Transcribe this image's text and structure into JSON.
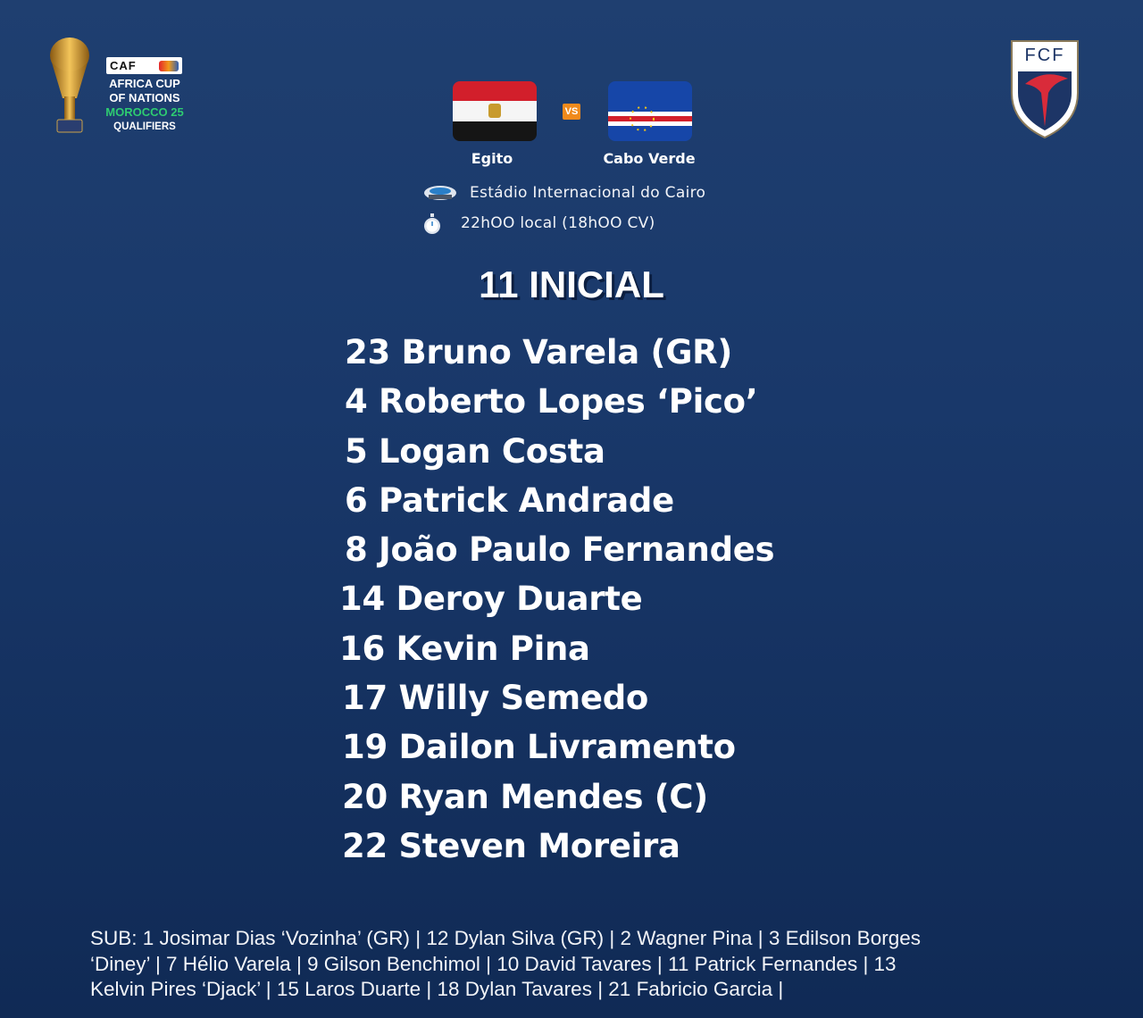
{
  "competition": {
    "logo_text": "CAF",
    "lines": [
      "AFRICA CUP",
      "OF NATIONS",
      "MOROCCO 25",
      "QUALIFIERS"
    ],
    "accent": "#2ecc71"
  },
  "federation": {
    "logo_text": "FCF"
  },
  "match": {
    "home": {
      "name": "Egito",
      "flag": "egypt-flag"
    },
    "away": {
      "name": "Cabo Verde",
      "flag": "cape-verde-flag"
    },
    "vs": "VS",
    "vs_color": "#f08a1c",
    "stadium": "Estádio Internacional do Cairo",
    "time": "22hOO local (18hOO CV)"
  },
  "lineup": {
    "title": "11 INICIAL",
    "players": [
      "23 Bruno Varela (GR)",
      "4 Roberto Lopes ‘Pico’",
      "5 Logan Costa",
      "6 Patrick Andrade",
      "8 João Paulo Fernandes",
      "14 Deroy Duarte",
      "16 Kevin Pina",
      "17 Willy Semedo",
      "19 Dailon Livramento",
      "20 Ryan Mendes (C)",
      "22 Steven Moreira"
    ]
  },
  "subs": {
    "lines": [
      "SUB: 1 Josimar Dias ‘Vozinha’ (GR) | 12 Dylan Silva (GR) | 2 Wagner Pina | 3 Edilson Borges",
      "‘Diney’ | 7 Hélio Varela | 9 Gilson Benchimol | 10 David Tavares | 11 Patrick Fernandes | 13",
      "Kelvin Pires ‘Djack’ | 15 Laros Duarte | 18 Dylan Tavares | 21 Fabricio Garcia |"
    ]
  }
}
